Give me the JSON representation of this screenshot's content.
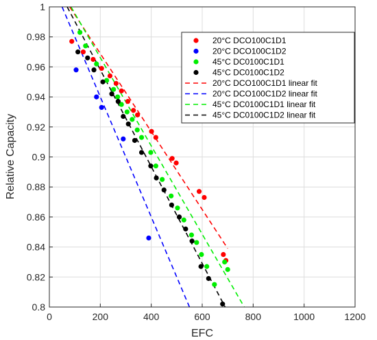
{
  "chart_data": {
    "type": "scatter",
    "xlabel": "EFC",
    "ylabel": "Relative Capacity",
    "xlim": [
      0,
      1200
    ],
    "ylim": [
      0.8,
      1.0
    ],
    "xticks": [
      0,
      200,
      400,
      600,
      800,
      1000,
      1200
    ],
    "yticks": [
      0.8,
      0.82,
      0.84,
      0.86,
      0.88,
      0.9,
      0.92,
      0.94,
      0.96,
      0.98,
      1
    ],
    "ytick_labels": [
      "0.8",
      "0.82",
      "0.84",
      "0.86",
      "0.88",
      "0.9",
      "0.92",
      "0.94",
      "0.96",
      "0.98",
      "1"
    ],
    "grid": true,
    "legend_position": "top-right",
    "series": [
      {
        "name": "20°C DCO100C1D1",
        "color": "#ff0000",
        "points": [
          [
            88,
            0.977
          ],
          [
            133,
            0.97
          ],
          [
            172,
            0.965
          ],
          [
            205,
            0.959
          ],
          [
            238,
            0.954
          ],
          [
            262,
            0.949
          ],
          [
            283,
            0.944
          ],
          [
            308,
            0.937
          ],
          [
            330,
            0.931
          ],
          [
            346,
            0.928
          ],
          [
            401,
            0.917
          ],
          [
            418,
            0.913
          ],
          [
            482,
            0.899
          ],
          [
            498,
            0.896
          ],
          [
            588,
            0.877
          ],
          [
            608,
            0.873
          ],
          [
            683,
            0.835
          ],
          [
            693,
            0.831
          ]
        ]
      },
      {
        "name": "20°C DCO100C1D2",
        "color": "#0000ff",
        "points": [
          [
            105,
            0.958
          ],
          [
            185,
            0.94
          ],
          [
            205,
            0.933
          ],
          [
            290,
            0.912
          ],
          [
            390,
            0.846
          ]
        ]
      },
      {
        "name": "45°C DC0100C1D1",
        "color": "#00ee00",
        "points": [
          [
            120,
            0.983
          ],
          [
            142,
            0.974
          ],
          [
            185,
            0.962
          ],
          [
            225,
            0.951
          ],
          [
            252,
            0.945
          ],
          [
            268,
            0.94
          ],
          [
            283,
            0.935
          ],
          [
            305,
            0.93
          ],
          [
            325,
            0.925
          ],
          [
            345,
            0.918
          ],
          [
            362,
            0.913
          ],
          [
            398,
            0.903
          ],
          [
            418,
            0.894
          ],
          [
            443,
            0.885
          ],
          [
            478,
            0.874
          ],
          [
            503,
            0.866
          ],
          [
            528,
            0.858
          ],
          [
            558,
            0.848
          ],
          [
            578,
            0.843
          ],
          [
            597,
            0.835
          ],
          [
            618,
            0.827
          ],
          [
            648,
            0.815
          ],
          [
            688,
            0.83
          ],
          [
            700,
            0.825
          ]
        ]
      },
      {
        "name": "45°C DC0100C1D2",
        "color": "#000000",
        "points": [
          [
            112,
            0.97
          ],
          [
            150,
            0.966
          ],
          [
            175,
            0.958
          ],
          [
            210,
            0.95
          ],
          [
            245,
            0.942
          ],
          [
            270,
            0.937
          ],
          [
            290,
            0.927
          ],
          [
            310,
            0.922
          ],
          [
            335,
            0.911
          ],
          [
            362,
            0.903
          ],
          [
            398,
            0.894
          ],
          [
            420,
            0.886
          ],
          [
            450,
            0.878
          ],
          [
            480,
            0.868
          ],
          [
            510,
            0.86
          ],
          [
            535,
            0.852
          ],
          [
            560,
            0.844
          ],
          [
            595,
            0.827
          ],
          [
            625,
            0.819
          ],
          [
            680,
            0.802
          ]
        ]
      }
    ],
    "fits": [
      {
        "name": "20°C DCO100C1D1 linear fit",
        "color": "#ff0000",
        "x": [
          80,
          700
        ],
        "y": [
          1.0,
          0.839
        ]
      },
      {
        "name": "20°C DCO100C1D2 linear fit",
        "color": "#0000ff",
        "x": [
          50,
          550
        ],
        "y": [
          1.0,
          0.8
        ]
      },
      {
        "name": "45°C DC0100C1D1 linear fit",
        "color": "#00ee00",
        "x": [
          85,
          765
        ],
        "y": [
          1.0,
          0.8
        ]
      },
      {
        "name": "45°C DC0100C1D2 linear fit",
        "color": "#000000",
        "x": [
          70,
          690
        ],
        "y": [
          1.0,
          0.8
        ]
      }
    ],
    "overlap_fit_colors": [
      "#8b4513",
      "#808000"
    ]
  }
}
